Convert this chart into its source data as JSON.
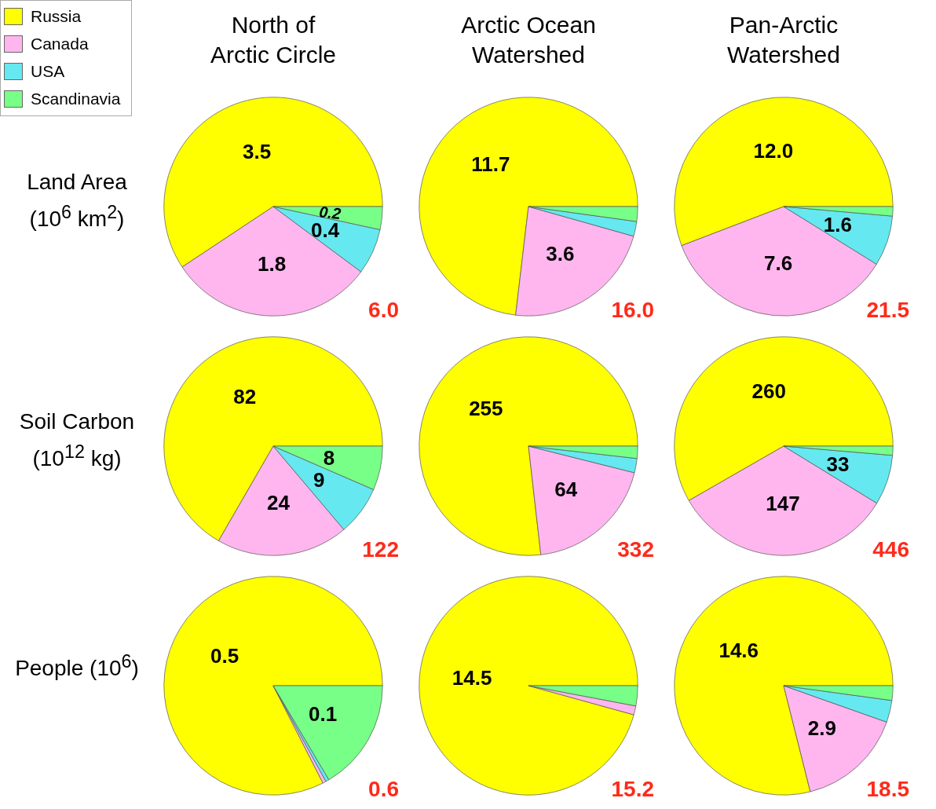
{
  "chart_data": [
    {
      "type": "pie",
      "title": "North of Arctic Circle",
      "ylabel": "Land Area (10$^{6}$ km$^{2}$)",
      "legend": "top left",
      "categories": [
        "Russia",
        "Canada",
        "USA",
        "Scandinavia"
      ],
      "colors": [
        "#ffff00",
        "#ffb6ee",
        "#66e8f0",
        "#78ff88"
      ],
      "values": [
        3.5,
        1.8,
        0.4,
        0.2
      ],
      "value_labels": [
        "3.5",
        "1.8",
        "0.4",
        "0.2"
      ],
      "annotations": [
        "6.0"
      ]
    },
    {
      "type": "pie",
      "title": "Arctic Ocean Watershed",
      "categories": [
        null,
        null,
        null,
        null
      ],
      "colors": [
        "#ffff00",
        "#ffb6ee",
        "#66e8f0",
        "#78ff88"
      ],
      "values": [
        11.7,
        3.6,
        0.35,
        0.35
      ],
      "value_labels": [
        "11.7",
        "3.6",
        null,
        null
      ],
      "annotations": [
        "16.0"
      ]
    },
    {
      "type": "pie",
      "title": "Pan-Arctic Watershed",
      "categories": [
        null,
        null,
        null,
        null
      ],
      "colors": [
        "#ffff00",
        "#ffb6ee",
        "#66e8f0",
        "#78ff88"
      ],
      "values": [
        12.0,
        7.6,
        1.6,
        0.3
      ],
      "value_labels": [
        "12.0",
        "7.6",
        "1.6",
        null
      ],
      "annotations": [
        "21.5"
      ]
    },
    {
      "type": "pie",
      "ylabel": "Soil Carbon (10$^{12}$ kg)",
      "categories": [
        null,
        null,
        null,
        null
      ],
      "colors": [
        "#ffff00",
        "#ffb6ee",
        "#66e8f0",
        "#78ff88"
      ],
      "values": [
        82,
        24,
        9,
        8
      ],
      "value_labels": [
        "82",
        "24",
        "9",
        "8"
      ],
      "annotations": [
        "122"
      ]
    },
    {
      "type": "pie",
      "categories": [
        null,
        null,
        null,
        null
      ],
      "colors": [
        "#ffff00",
        "#ffb6ee",
        "#66e8f0",
        "#78ff88"
      ],
      "values": [
        255,
        64,
        7,
        6
      ],
      "value_labels": [
        "255",
        "64",
        null,
        null
      ],
      "annotations": [
        "332"
      ]
    },
    {
      "type": "pie",
      "categories": [
        null,
        null,
        null,
        null
      ],
      "colors": [
        "#ffff00",
        "#ffb6ee",
        "#66e8f0",
        "#78ff88"
      ],
      "values": [
        260,
        147,
        33,
        6
      ],
      "value_labels": [
        "260",
        "147",
        "33",
        null
      ],
      "annotations": [
        "446"
      ]
    },
    {
      "type": "pie",
      "ylabel": "People (10$^{6}$)",
      "categories": [
        null,
        null,
        null,
        null
      ],
      "colors": [
        "#ffff00",
        "#ffb6ee",
        "#66e8f0",
        "#78ff88"
      ],
      "values": [
        0.5,
        0.003,
        0.003,
        0.1
      ],
      "value_labels": [
        "0.5",
        null,
        null,
        "0.1"
      ],
      "annotations": [
        "0.6"
      ]
    },
    {
      "type": "pie",
      "categories": [
        null,
        null,
        null,
        null
      ],
      "colors": [
        "#ffff00",
        "#ffb6ee",
        "#66e8f0",
        "#78ff88"
      ],
      "values": [
        14.5,
        0.2,
        null,
        0.45
      ],
      "value_labels": [
        "14.5",
        null,
        null,
        null
      ],
      "annotations": [
        "15.2"
      ]
    },
    {
      "type": "pie",
      "categories": [
        null,
        null,
        null,
        null
      ],
      "colors": [
        "#ffff00",
        "#ffb6ee",
        "#66e8f0",
        "#78ff88"
      ],
      "values": [
        14.6,
        2.9,
        0.6,
        0.4
      ],
      "value_labels": [
        "14.6",
        "2.9",
        null,
        null
      ],
      "annotations": [
        "18.5"
      ]
    }
  ]
}
